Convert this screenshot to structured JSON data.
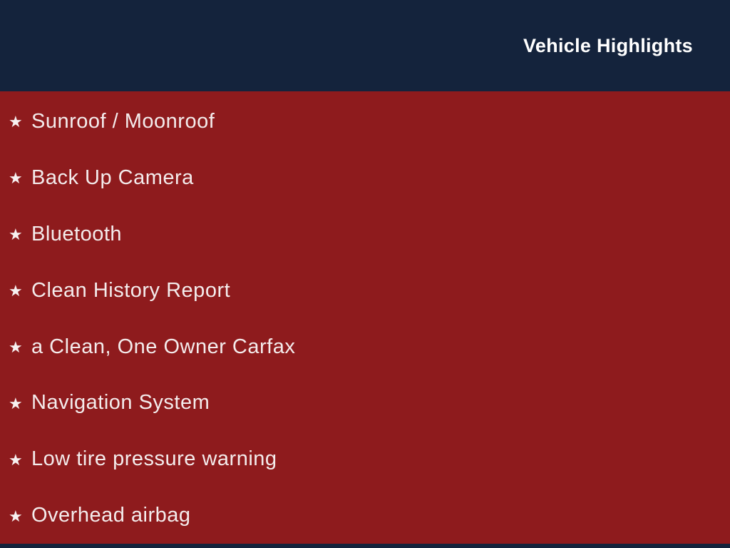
{
  "header": {
    "title": "Vehicle Highlights"
  },
  "highlights": {
    "bullet": "★",
    "items": [
      "Sunroof / Moonroof",
      "Back Up Camera",
      "Bluetooth",
      "Clean History Report",
      "a Clean, One Owner Carfax",
      "Navigation System",
      "Low tire pressure warning",
      "Overhead airbag"
    ]
  },
  "colors": {
    "header_bg": "#14233c",
    "body_bg": "#8e1b1d",
    "text": "#f4ecec",
    "bullet_color": "#f7f1f1",
    "title_color": "#ffffff"
  }
}
